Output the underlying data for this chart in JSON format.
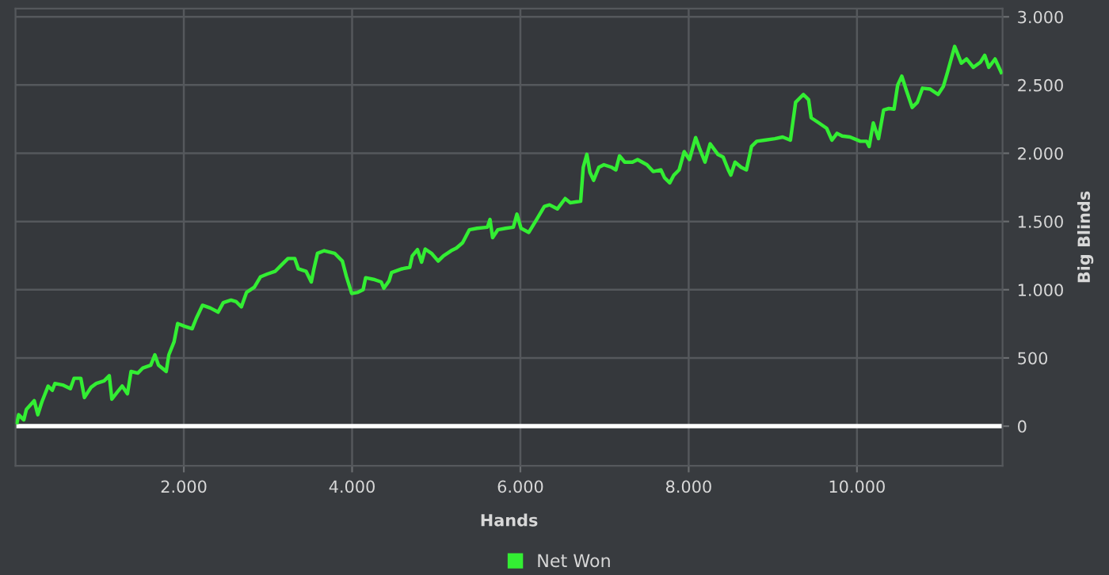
{
  "chart_data": {
    "type": "line",
    "xlabel": "Hands",
    "ylabel": "Big Blinds",
    "xlim": [
      0,
      11730
    ],
    "ylim": [
      -290,
      3060
    ],
    "xticks": [
      {
        "value": 2000,
        "label": "2.000"
      },
      {
        "value": 4000,
        "label": "4.000"
      },
      {
        "value": 6000,
        "label": "6.000"
      },
      {
        "value": 8000,
        "label": "8.000"
      },
      {
        "value": 10000,
        "label": "10.000"
      }
    ],
    "yticks": [
      0,
      500,
      {
        "value": 1000,
        "label": "1.000"
      },
      {
        "value": 1500,
        "label": "1.500"
      },
      {
        "value": 2000,
        "label": "2.000"
      },
      {
        "value": 2500,
        "label": "2.500"
      },
      {
        "value": 3000,
        "label": "3.000"
      }
    ],
    "grid": true,
    "legend": "bottom",
    "marker": "none",
    "line_style": "solid",
    "ref_lines": [
      {
        "axis": "y",
        "value": 0,
        "color": "#ffffff"
      }
    ],
    "series": [
      {
        "name": "Net Won",
        "color": "#33ee33",
        "x": [
          18,
          37,
          98,
          129,
          222,
          265,
          314,
          388,
          437,
          468,
          560,
          652,
          696,
          776,
          819,
          899,
          960,
          1053,
          1114,
          1145,
          1207,
          1268,
          1330,
          1373,
          1453,
          1514,
          1607,
          1656,
          1699,
          1791,
          1822,
          1884,
          1927,
          2007,
          2099,
          2148,
          2222,
          2315,
          2407,
          2469,
          2561,
          2623,
          2684,
          2746,
          2838,
          2912,
          2992,
          3084,
          3146,
          3238,
          3318,
          3361,
          3454,
          3515,
          3546,
          3589,
          3669,
          3792,
          3884,
          3933,
          3995,
          4069,
          4131,
          4161,
          4254,
          4346,
          4377,
          4439,
          4469,
          4592,
          4685,
          4715,
          4777,
          4826,
          4869,
          4943,
          5023,
          5085,
          5177,
          5239,
          5313,
          5393,
          5485,
          5608,
          5639,
          5670,
          5731,
          5824,
          5916,
          5959,
          6008,
          6100,
          6193,
          6285,
          6347,
          6439,
          6532,
          6593,
          6716,
          6747,
          6790,
          6827,
          6870,
          6932,
          6993,
          7086,
          7135,
          7178,
          7240,
          7332,
          7393,
          7504,
          7578,
          7670,
          7713,
          7775,
          7824,
          7886,
          7947,
          8009,
          8083,
          8132,
          8194,
          8255,
          8347,
          8409,
          8471,
          8501,
          8551,
          8624,
          8686,
          8747,
          8809,
          8901,
          9024,
          9117,
          9209,
          9271,
          9363,
          9425,
          9456,
          9548,
          9640,
          9702,
          9763,
          9825,
          9917,
          10040,
          10114,
          10145,
          10194,
          10256,
          10317,
          10379,
          10441,
          10484,
          10533,
          10582,
          10656,
          10718,
          10779,
          10871,
          10964,
          11026,
          11075,
          11161,
          11241,
          11302,
          11383,
          11468,
          11518,
          11567,
          11641,
          11715
        ],
        "values": [
          27,
          84,
          46,
          122,
          187,
          84,
          179,
          294,
          263,
          313,
          302,
          275,
          351,
          351,
          210,
          286,
          313,
          332,
          370,
          198,
          248,
          294,
          237,
          401,
          389,
          427,
          447,
          523,
          447,
          401,
          523,
          618,
          752,
          733,
          714,
          790,
          886,
          866,
          836,
          905,
          924,
          912,
          874,
          981,
          1019,
          1095,
          1115,
          1134,
          1172,
          1229,
          1229,
          1153,
          1134,
          1057,
          1153,
          1267,
          1286,
          1267,
          1210,
          1095,
          973,
          981,
          1000,
          1088,
          1076,
          1057,
          1011,
          1065,
          1126,
          1153,
          1164,
          1248,
          1294,
          1202,
          1298,
          1267,
          1210,
          1248,
          1286,
          1305,
          1344,
          1439,
          1450,
          1458,
          1515,
          1382,
          1439,
          1450,
          1458,
          1554,
          1450,
          1420,
          1515,
          1611,
          1622,
          1592,
          1668,
          1637,
          1649,
          1897,
          1992,
          1859,
          1802,
          1897,
          1916,
          1897,
          1878,
          1981,
          1935,
          1935,
          1954,
          1916,
          1866,
          1878,
          1821,
          1783,
          1840,
          1878,
          2012,
          1954,
          2115,
          2031,
          1935,
          2069,
          1992,
          1973,
          1878,
          1840,
          1935,
          1897,
          1878,
          2050,
          2088,
          2096,
          2107,
          2119,
          2096,
          2374,
          2431,
          2393,
          2260,
          2222,
          2183,
          2096,
          2146,
          2126,
          2119,
          2088,
          2088,
          2050,
          2222,
          2107,
          2317,
          2328,
          2324,
          2500,
          2565,
          2470,
          2336,
          2374,
          2477,
          2470,
          2431,
          2489,
          2592,
          2783,
          2660,
          2691,
          2630,
          2668,
          2718,
          2630,
          2691,
          2592
        ]
      }
    ]
  }
}
